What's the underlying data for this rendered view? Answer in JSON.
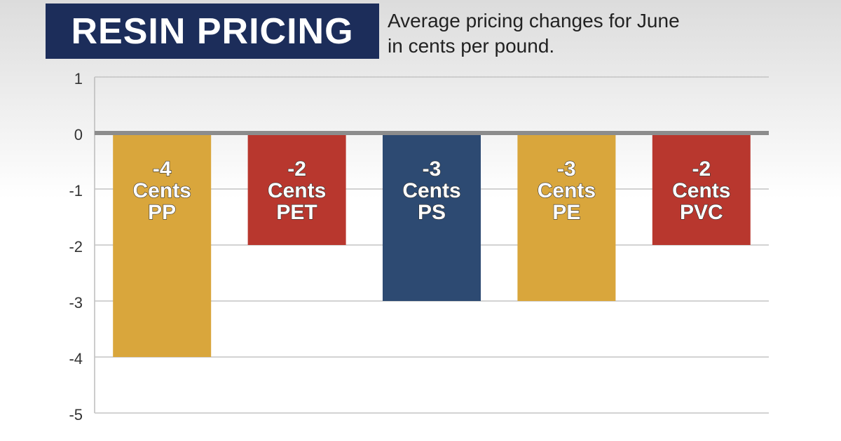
{
  "chart_data": {
    "type": "bar",
    "title": "RESIN PRICING",
    "subtitle": "Average pricing changes for June in cents per pound.",
    "unit_label": "Cents",
    "categories": [
      "PP",
      "PET",
      "PS",
      "PE",
      "PVC"
    ],
    "values": [
      -4,
      -2,
      -3,
      -3,
      -2
    ],
    "colors": [
      "#d9a63c",
      "#b8372e",
      "#2d4a72",
      "#d9a63c",
      "#b8372e"
    ],
    "ylim": [
      -5,
      1
    ],
    "yticks": [
      1,
      0,
      -1,
      -2,
      -3,
      -4,
      -5
    ],
    "grid": true
  }
}
